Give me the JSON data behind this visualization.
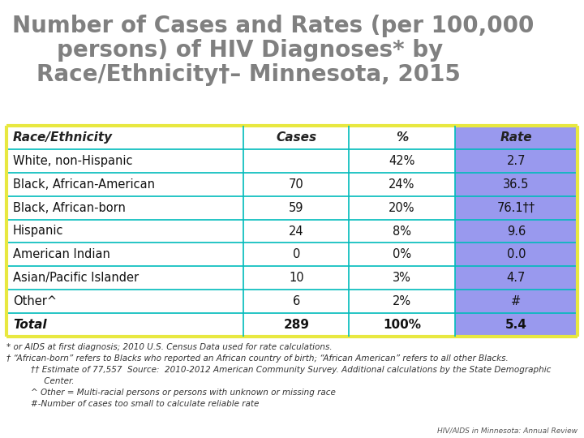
{
  "title_line1": "Number of Cases and Rates (per 100,000",
  "title_line2": "persons) of HIV Diagnoses* by",
  "title_line3": "Race/Ethnicity†– Minnesota, 2015",
  "title_color": "#808080",
  "columns": [
    "Race/Ethnicity",
    "Cases",
    "%",
    "Rate"
  ],
  "rows": [
    [
      "White, non-Hispanic",
      "",
      "42%",
      "2.7"
    ],
    [
      "Black, African-American",
      "70",
      "24%",
      "36.5"
    ],
    [
      "Black, African-born",
      "59",
      "20%",
      "76.1††"
    ],
    [
      "Hispanic",
      "24",
      "8%",
      "9.6"
    ],
    [
      "American Indian",
      "0",
      "0%",
      "0.0"
    ],
    [
      "Asian/Pacific Islander",
      "10",
      "3%",
      "4.7"
    ],
    [
      "Other^",
      "6",
      "2%",
      "#"
    ],
    [
      "Total",
      "289",
      "100%",
      "5.4"
    ]
  ],
  "rate_col_bg": "#9999ee",
  "border_color_yellow": "#e8e840",
  "border_color_teal": "#00bbbb",
  "footnote1": "* or AIDS at first diagnosis; 2010 U.S. Census Data used for rate calculations.",
  "footnote2": "† “African-born” refers to Blacks who reported an African country of birth; “African American” refers to all other Blacks.",
  "footnote3": "†† Estimate of 77,557  Source:  2010-2012 American Community Survey. Additional calculations by the State Demographic",
  "footnote3b": "     Center.",
  "footnote4": "^ Other = Multi-racial persons or persons with unknown or missing race",
  "footnote5": "#-Number of cases too small to calculate reliable rate",
  "footnote6": "HIV/AIDS in Minnesota: Annual Review",
  "bg_color": "#ffffff"
}
